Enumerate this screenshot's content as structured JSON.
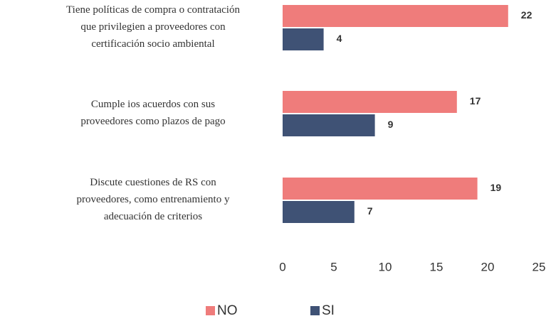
{
  "chart_data": {
    "type": "bar",
    "orientation": "horizontal",
    "categories": [
      "Tiene políticas de compra o contratación\nque privilegien a proveedores con\ncertificación socio ambiental",
      "Cumple ios acuerdos con sus\nproveedores como plazos de pago",
      "Discute cuestiones de RS con\nproveedores, como entrenamiento y\nadecuación de criterios"
    ],
    "series": [
      {
        "name": "NO",
        "color": "#ef7c7b",
        "values": [
          22,
          17,
          19
        ]
      },
      {
        "name": "SI",
        "color": "#3f5275",
        "values": [
          4,
          9,
          7
        ]
      }
    ],
    "xlim": [
      0,
      25
    ],
    "xticks": [
      0,
      5,
      10,
      15,
      20,
      25
    ],
    "grid": false,
    "legend": "bottom"
  }
}
